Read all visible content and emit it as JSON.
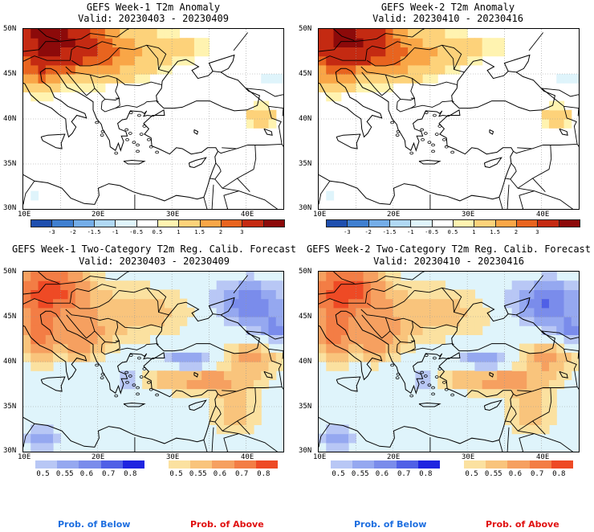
{
  "panels": [
    {
      "id": "tl",
      "title": "GEFS Week-1 T2m Anomaly",
      "valid": "Valid: 20230403 - 20230409",
      "type": "anomaly"
    },
    {
      "id": "tr",
      "title": "GEFS Week-2 T2m Anomaly",
      "valid": "Valid: 20230410 - 20230416",
      "type": "anomaly"
    },
    {
      "id": "bl",
      "title": "GEFS Week-1 Two-Category T2m Reg. Calib. Forecast",
      "valid": "Valid: 20230403 - 20230409",
      "type": "prob"
    },
    {
      "id": "br",
      "title": "GEFS Week-2 Two-Category T2m Reg. Calib. Forecast",
      "valid": "Valid: 20230410 - 20230416",
      "type": "prob"
    }
  ],
  "axes": {
    "lat_labels": [
      "50N",
      "45N",
      "40N",
      "35N",
      "30N"
    ],
    "lon_labels": [
      "10E",
      "20E",
      "30E",
      "40E"
    ]
  },
  "anomaly_colorbar": {
    "labels": [
      "-3",
      "-2",
      "-1.5",
      "-1",
      "-0.5",
      "0.5",
      "1",
      "1.5",
      "2",
      "3"
    ],
    "colors": [
      "#1f4fae",
      "#3f7fd0",
      "#74ade8",
      "#b0d8f4",
      "#dff4fb",
      "#ffffff",
      "#fff3b0",
      "#fdd27a",
      "#f9a647",
      "#e8641f",
      "#c42a12",
      "#8c0a0a"
    ]
  },
  "prob_colorbar_below": {
    "labels": [
      "0.5",
      "0.55",
      "0.6",
      "0.7",
      "0.8"
    ],
    "colors": [
      "#b8c7f5",
      "#95a8f0",
      "#7a8ceb",
      "#5060e6",
      "#1e24e0"
    ]
  },
  "prob_colorbar_above": {
    "labels": [
      "0.5",
      "0.55",
      "0.6",
      "0.7",
      "0.8"
    ],
    "colors": [
      "#fbe1a0",
      "#f9c47c",
      "#f6a060",
      "#f37d45",
      "#ee4a25"
    ]
  },
  "legend": {
    "below_label": "Prob. of Below",
    "above_label": "Prob. of Above",
    "below_color": "#1e6fe0",
    "above_color": "#e01010"
  },
  "colors": {
    "map_bg_anomaly": "#ffffff",
    "map_bg_prob": "#dff4fb"
  }
}
